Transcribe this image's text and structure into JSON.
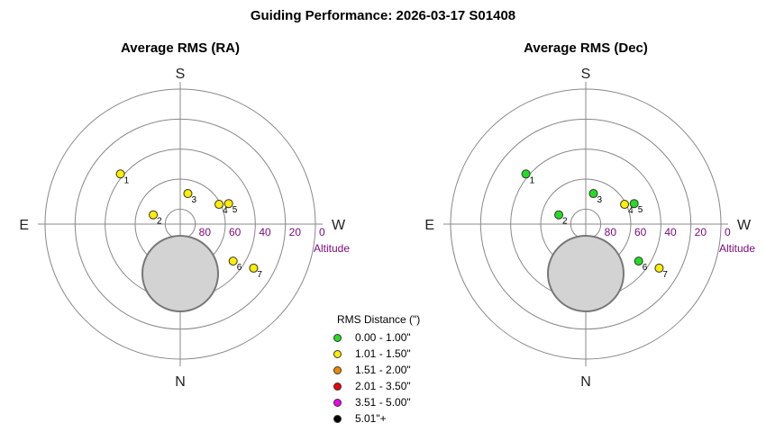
{
  "title": "Guiding Performance: 2026-03-17  S01408",
  "chart_data": [
    {
      "type": "polar-scatter",
      "title": "Average RMS (RA)",
      "directions": {
        "top": "S",
        "bottom": "N",
        "left": "E",
        "right": "W"
      },
      "altitude_label": "Altitude",
      "altitude_ticks": [
        80,
        60,
        40,
        20,
        0
      ],
      "points": [
        {
          "label": "1",
          "az": 230,
          "alt": 38,
          "rms_class": "1.01 - 1.50\""
        },
        {
          "label": "2",
          "az": 251,
          "alt": 71,
          "rms_class": "1.01 - 1.50\""
        },
        {
          "label": "3",
          "az": 166,
          "alt": 69,
          "rms_class": "1.01 - 1.50\""
        },
        {
          "label": "4",
          "az": 117,
          "alt": 61,
          "rms_class": "1.01 - 1.50\""
        },
        {
          "label": "5",
          "az": 113,
          "alt": 55,
          "rms_class": "1.01 - 1.50\""
        },
        {
          "label": "6",
          "az": 55,
          "alt": 47,
          "rms_class": "1.01 - 1.50\""
        },
        {
          "label": "7",
          "az": 59,
          "alt": 33,
          "rms_class": "1.01 - 1.50\""
        }
      ]
    },
    {
      "type": "polar-scatter",
      "title": "Average RMS (Dec)",
      "directions": {
        "top": "S",
        "bottom": "N",
        "left": "E",
        "right": "W"
      },
      "altitude_label": "Altitude",
      "altitude_ticks": [
        80,
        60,
        40,
        20,
        0
      ],
      "points": [
        {
          "label": "1",
          "az": 230,
          "alt": 38,
          "rms_class": "0.00 - 1.00\""
        },
        {
          "label": "2",
          "az": 251,
          "alt": 71,
          "rms_class": "0.00 - 1.00\""
        },
        {
          "label": "3",
          "az": 166,
          "alt": 69,
          "rms_class": "0.00 - 1.00\""
        },
        {
          "label": "4",
          "az": 117,
          "alt": 61,
          "rms_class": "1.01 - 1.50\""
        },
        {
          "label": "5",
          "az": 113,
          "alt": 55,
          "rms_class": "0.00 - 1.00\""
        },
        {
          "label": "6",
          "az": 55,
          "alt": 47,
          "rms_class": "0.00 - 1.00\""
        },
        {
          "label": "7",
          "az": 59,
          "alt": 33,
          "rms_class": "1.01 - 1.50\""
        }
      ]
    }
  ],
  "legend": {
    "title": "RMS Distance (\")",
    "items": [
      {
        "label": "0.00 - 1.00\"",
        "color": "#22dd22"
      },
      {
        "label": "1.01 - 1.50\"",
        "color": "#ffee00"
      },
      {
        "label": "1.51 - 2.00\"",
        "color": "#ee8800"
      },
      {
        "label": "2.01 - 3.50\"",
        "color": "#ee0000"
      },
      {
        "label": "3.51 - 5.00\"",
        "color": "#ee00ee"
      },
      {
        "label": "5.01\"+",
        "color": "#000000"
      }
    ]
  }
}
